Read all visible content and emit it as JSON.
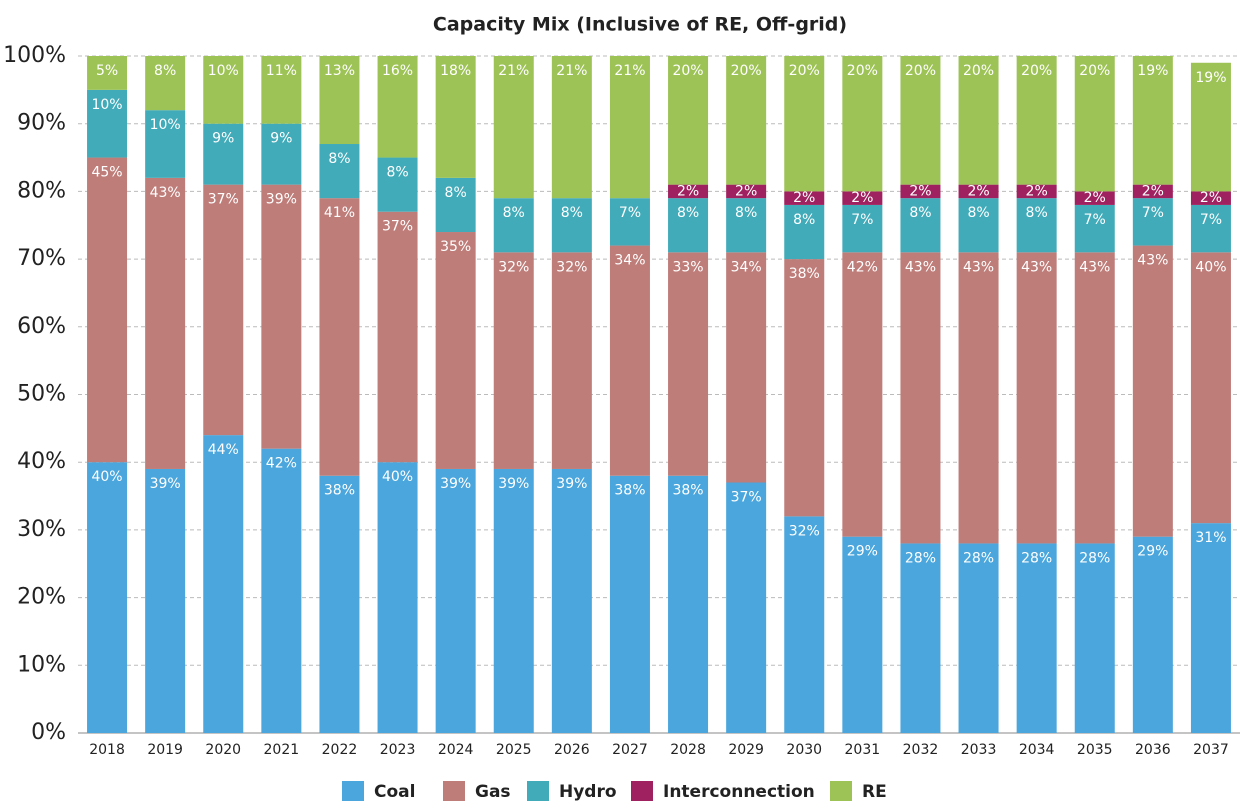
{
  "chart_data": {
    "type": "stacked_bar",
    "title": "Capacity Mix (Inclusive of RE, Off-grid)",
    "categories": [
      "2018",
      "2019",
      "2020",
      "2021",
      "2022",
      "2023",
      "2024",
      "2025",
      "2026",
      "2027",
      "2028",
      "2029",
      "2030",
      "2031",
      "2032",
      "2033",
      "2034",
      "2035",
      "2036",
      "2037"
    ],
    "series": [
      {
        "name": "Coal",
        "color": "#4aa6dc",
        "values": [
          40,
          39,
          44,
          42,
          38,
          40,
          39,
          39,
          39,
          38,
          38,
          37,
          32,
          29,
          28,
          28,
          28,
          28,
          29,
          31
        ],
        "value_labels": [
          "40%",
          "39%",
          "44%",
          "42%",
          "38%",
          "40%",
          "39%",
          "39%",
          "39%",
          "38%",
          "38%",
          "37%",
          "32%",
          "29%",
          "28%",
          "28%",
          "28%",
          "28%",
          "29%",
          "31%"
        ]
      },
      {
        "name": "Gas",
        "color": "#bf7d79",
        "values": [
          45,
          43,
          37,
          39,
          41,
          37,
          35,
          32,
          32,
          34,
          33,
          34,
          38,
          42,
          43,
          43,
          43,
          43,
          43,
          40
        ],
        "value_labels": [
          "45%",
          "43%",
          "37%",
          "39%",
          "41%",
          "37%",
          "35%",
          "32%",
          "32%",
          "34%",
          "33%",
          "34%",
          "38%",
          "42%",
          "43%",
          "43%",
          "43%",
          "43%",
          "43%",
          "40%"
        ]
      },
      {
        "name": "Hydro",
        "color": "#41abb9",
        "values": [
          10,
          10,
          9,
          9,
          8,
          8,
          8,
          8,
          8,
          7,
          8,
          8,
          8,
          7,
          8,
          8,
          8,
          7,
          7,
          7
        ],
        "value_labels": [
          "10%",
          "10%",
          "9%",
          "9%",
          "8%",
          "8%",
          "8%",
          "8%",
          "8%",
          "7%",
          "8%",
          "8%",
          "8%",
          "7%",
          "8%",
          "8%",
          "8%",
          "7%",
          "7%",
          "7%"
        ]
      },
      {
        "name": "Interconnection",
        "color": "#a0215f",
        "values": [
          0,
          0,
          0,
          0,
          0,
          0,
          0,
          0,
          0,
          0,
          2,
          2,
          2,
          2,
          2,
          2,
          2,
          2,
          2,
          2
        ],
        "value_labels": [
          null,
          null,
          null,
          null,
          null,
          null,
          null,
          null,
          null,
          null,
          "2%",
          "2%",
          "2%",
          "2%",
          "2%",
          "2%",
          "2%",
          "2%",
          "2%",
          "2%"
        ]
      },
      {
        "name": "RE",
        "color": "#9dc356",
        "values": [
          5,
          8,
          10,
          11,
          13,
          16,
          18,
          21,
          21,
          21,
          20,
          20,
          20,
          20,
          20,
          20,
          20,
          20,
          19,
          19
        ],
        "value_labels": [
          "5%",
          "8%",
          "10%",
          "11%",
          "13%",
          "16%",
          "18%",
          "21%",
          "21%",
          "21%",
          "20%",
          "20%",
          "20%",
          "20%",
          "20%",
          "20%",
          "20%",
          "20%",
          "19%",
          "19%"
        ]
      }
    ],
    "ylim": [
      0,
      100
    ],
    "yticks": [
      {
        "value": 0,
        "label": "0%"
      },
      {
        "value": 10,
        "label": "10%"
      },
      {
        "value": 20,
        "label": "20%"
      },
      {
        "value": 30,
        "label": "30%"
      },
      {
        "value": 40,
        "label": "40%"
      },
      {
        "value": 50,
        "label": "50%"
      },
      {
        "value": 60,
        "label": "60%"
      },
      {
        "value": 70,
        "label": "70%"
      },
      {
        "value": 80,
        "label": "80%"
      },
      {
        "value": 90,
        "label": "90%"
      },
      {
        "value": 100,
        "label": "100%"
      }
    ],
    "grid": true,
    "legend": "bottom"
  }
}
